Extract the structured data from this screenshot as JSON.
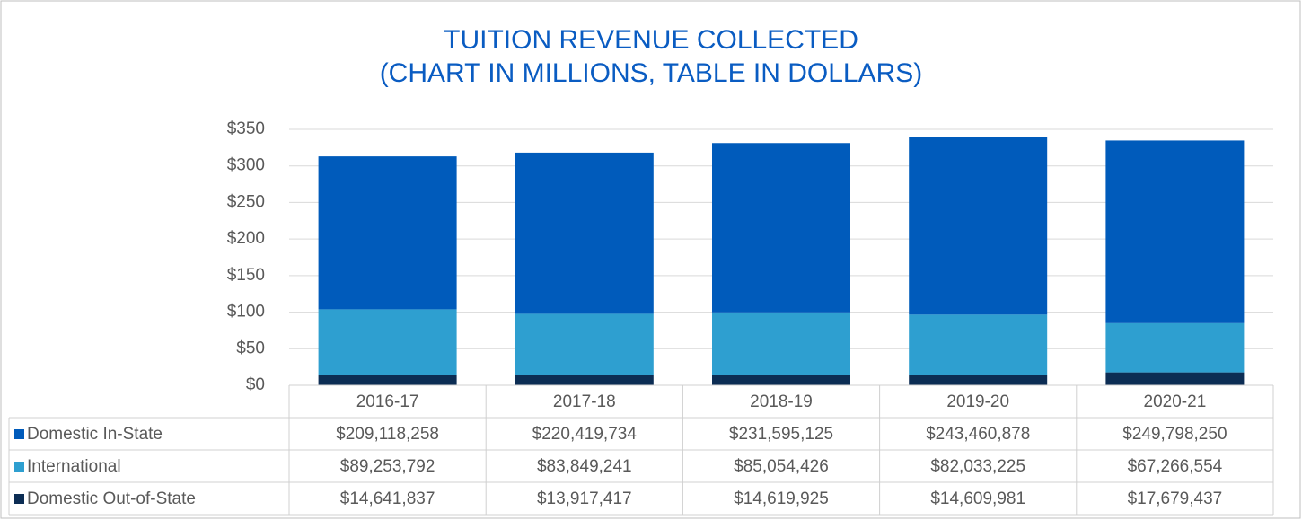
{
  "chart_data": {
    "type": "bar",
    "stacked": true,
    "title": "TUITION REVENUE COLLECTED",
    "subtitle": "(CHART IN MILLIONS, TABLE IN DOLLARS)",
    "categories": [
      "2016-17",
      "2017-18",
      "2018-19",
      "2019-20",
      "2020-21"
    ],
    "series": [
      {
        "name": "Domestic In-State",
        "color": "#005bbb",
        "values": [
          209.118258,
          220.419734,
          231.595125,
          243.460878,
          249.79825
        ],
        "value_labels": [
          "$209,118,258",
          "$220,419,734",
          "$231,595,125",
          "$243,460,878",
          "$249,798,250"
        ]
      },
      {
        "name": "International",
        "color": "#2e9fd0",
        "values": [
          89.253792,
          83.849241,
          85.054426,
          82.033225,
          67.266554
        ],
        "value_labels": [
          "$89,253,792",
          "$83,849,241",
          "$85,054,426",
          "$82,033,225",
          "$67,266,554"
        ]
      },
      {
        "name": "Domestic Out-of-State",
        "color": "#0c2d54",
        "values": [
          14.641837,
          13.917417,
          14.619925,
          14.609981,
          17.679437
        ],
        "value_labels": [
          "$14,641,837",
          "$13,917,417",
          "$14,619,925",
          "$14,609,981",
          "$17,679,437"
        ]
      }
    ],
    "ylim": [
      0,
      350
    ],
    "yticks": [
      {
        "value": 0,
        "label": "$0"
      },
      {
        "value": 50,
        "label": "$50"
      },
      {
        "value": 100,
        "label": "$100"
      },
      {
        "value": 150,
        "label": "$150"
      },
      {
        "value": 200,
        "label": "$200"
      },
      {
        "value": 250,
        "label": "$250"
      },
      {
        "value": 300,
        "label": "$300"
      },
      {
        "value": 350,
        "label": "$350"
      }
    ],
    "grid": true
  }
}
